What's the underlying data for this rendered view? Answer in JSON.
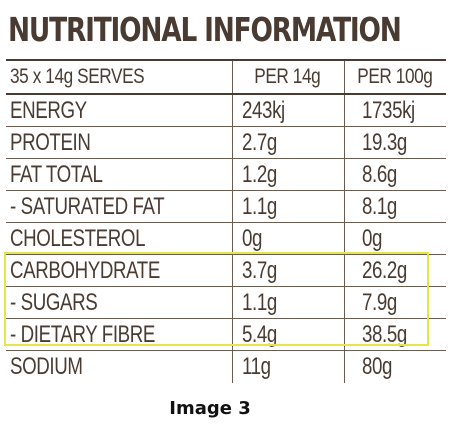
{
  "title": "NUTRITIONAL INFORMATION",
  "header": {
    "serves": "35 x 14g SERVES",
    "per_serve": "PER 14g",
    "per_100": "PER 100g"
  },
  "rows": [
    {
      "name": "ENERGY",
      "per_serve": "243kj",
      "per_100": "1735kj"
    },
    {
      "name": "PROTEIN",
      "per_serve": "2.7g",
      "per_100": "19.3g"
    },
    {
      "name": "FAT TOTAL",
      "per_serve": "1.2g",
      "per_100": "8.6g"
    },
    {
      "name": "- SATURATED FAT",
      "per_serve": "1.1g",
      "per_100": "8.1g"
    },
    {
      "name": "CHOLESTEROL",
      "per_serve": "0g",
      "per_100": "0g"
    },
    {
      "name": "CARBOHYDRATE",
      "per_serve": "3.7g",
      "per_100": "26.2g"
    },
    {
      "name": "- SUGARS",
      "per_serve": "1.1g",
      "per_100": "7.9g"
    },
    {
      "name": "- DIETARY FIBRE",
      "per_serve": "5.4g",
      "per_100": "38.5g"
    },
    {
      "name": "SODIUM",
      "per_serve": "11g",
      "per_100": "80g"
    }
  ],
  "highlight_color": "#e4e54a",
  "caption": "Image 3"
}
